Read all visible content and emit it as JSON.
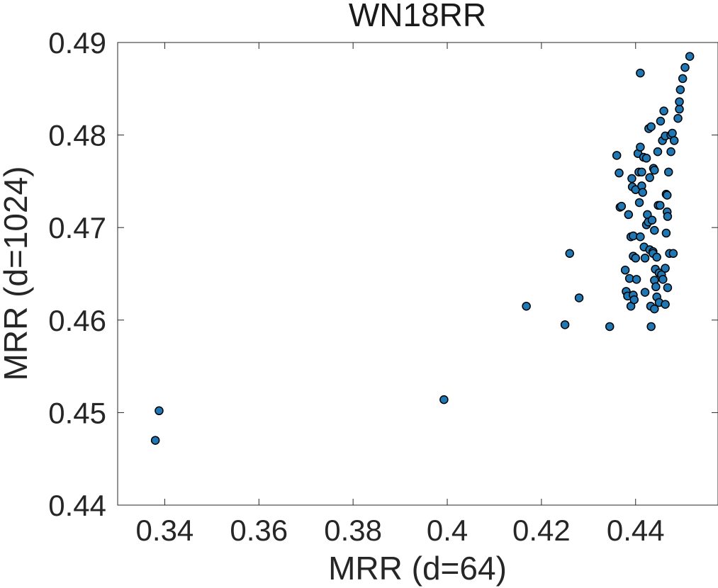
{
  "chart_data": {
    "type": "scatter",
    "title": "WN18RR",
    "xlabel": "MRR (d=64)",
    "ylabel": "MRR (d=1024)",
    "xlim": [
      0.33,
      0.4575
    ],
    "ylim": [
      0.44,
      0.49
    ],
    "xticks": [
      "0.34",
      "0.36",
      "0.38",
      "0.4",
      "0.42",
      "0.44"
    ],
    "yticks": [
      "0.44",
      "0.45",
      "0.46",
      "0.47",
      "0.48",
      "0.49"
    ],
    "grid": false,
    "box": true,
    "marker_color": "#1f77b4",
    "marker_edge_color": "#000000",
    "points": [
      [
        0.3388,
        0.4502
      ],
      [
        0.338,
        0.447
      ],
      [
        0.3993,
        0.4514
      ],
      [
        0.4168,
        0.4615
      ],
      [
        0.425,
        0.4595
      ],
      [
        0.426,
        0.4672
      ],
      [
        0.428,
        0.4624
      ],
      [
        0.4345,
        0.4593
      ],
      [
        0.436,
        0.4778
      ],
      [
        0.4365,
        0.4759
      ],
      [
        0.4367,
        0.4722
      ],
      [
        0.437,
        0.4723
      ],
      [
        0.4378,
        0.4654
      ],
      [
        0.438,
        0.4631
      ],
      [
        0.4383,
        0.4626
      ],
      [
        0.4385,
        0.4714
      ],
      [
        0.4387,
        0.4645
      ],
      [
        0.439,
        0.469
      ],
      [
        0.439,
        0.4615
      ],
      [
        0.4392,
        0.4753
      ],
      [
        0.4393,
        0.4744
      ],
      [
        0.4395,
        0.4691
      ],
      [
        0.4395,
        0.4669
      ],
      [
        0.4395,
        0.4627
      ],
      [
        0.4397,
        0.4622
      ],
      [
        0.44,
        0.4741
      ],
      [
        0.44,
        0.4667
      ],
      [
        0.4402,
        0.4644
      ],
      [
        0.4405,
        0.478
      ],
      [
        0.4407,
        0.476
      ],
      [
        0.4408,
        0.4727
      ],
      [
        0.441,
        0.4867
      ],
      [
        0.441,
        0.4787
      ],
      [
        0.441,
        0.469
      ],
      [
        0.4413,
        0.476
      ],
      [
        0.4413,
        0.4745
      ],
      [
        0.4415,
        0.4738
      ],
      [
        0.4417,
        0.4776
      ],
      [
        0.4418,
        0.4679
      ],
      [
        0.442,
        0.4667
      ],
      [
        0.442,
        0.463
      ],
      [
        0.4423,
        0.4775
      ],
      [
        0.4423,
        0.4703
      ],
      [
        0.4425,
        0.4714
      ],
      [
        0.4427,
        0.4706
      ],
      [
        0.4428,
        0.4807
      ],
      [
        0.443,
        0.4754
      ],
      [
        0.443,
        0.4676
      ],
      [
        0.4432,
        0.4615
      ],
      [
        0.4433,
        0.4593
      ],
      [
        0.4433,
        0.4809
      ],
      [
        0.4435,
        0.4708
      ],
      [
        0.4437,
        0.4674
      ],
      [
        0.4437,
        0.4672
      ],
      [
        0.4438,
        0.4764
      ],
      [
        0.444,
        0.4762
      ],
      [
        0.444,
        0.4697
      ],
      [
        0.444,
        0.4643
      ],
      [
        0.444,
        0.4612
      ],
      [
        0.4442,
        0.4655
      ],
      [
        0.4443,
        0.4636
      ],
      [
        0.4445,
        0.4668
      ],
      [
        0.4445,
        0.4625
      ],
      [
        0.4447,
        0.4782
      ],
      [
        0.4448,
        0.4724
      ],
      [
        0.445,
        0.4651
      ],
      [
        0.445,
        0.4619
      ],
      [
        0.4452,
        0.4724
      ],
      [
        0.4453,
        0.4815
      ],
      [
        0.4455,
        0.4649
      ],
      [
        0.4457,
        0.4794
      ],
      [
        0.4458,
        0.4644
      ],
      [
        0.446,
        0.4826
      ],
      [
        0.4463,
        0.4799
      ],
      [
        0.4463,
        0.4656
      ],
      [
        0.4463,
        0.4617
      ],
      [
        0.4465,
        0.4736
      ],
      [
        0.4465,
        0.4694
      ],
      [
        0.4467,
        0.4735
      ],
      [
        0.4467,
        0.4717
      ],
      [
        0.4468,
        0.4712
      ],
      [
        0.4468,
        0.4635
      ],
      [
        0.447,
        0.476
      ],
      [
        0.4472,
        0.4672
      ],
      [
        0.4475,
        0.48
      ],
      [
        0.4475,
        0.4782
      ],
      [
        0.4478,
        0.4802
      ],
      [
        0.448,
        0.4672
      ],
      [
        0.4482,
        0.4794
      ],
      [
        0.449,
        0.4818
      ],
      [
        0.4493,
        0.4828
      ],
      [
        0.4493,
        0.4836
      ],
      [
        0.4495,
        0.4849
      ],
      [
        0.45,
        0.4861
      ],
      [
        0.4505,
        0.4873
      ],
      [
        0.4515,
        0.4885
      ]
    ]
  }
}
